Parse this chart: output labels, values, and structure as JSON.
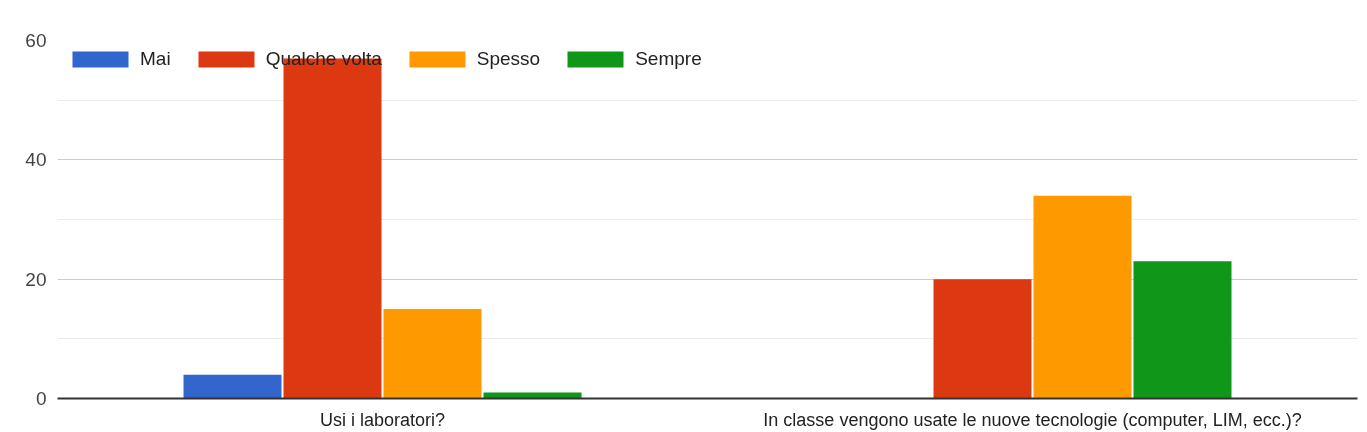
{
  "chart_data": {
    "type": "bar",
    "categories": [
      "Usi i laboratori?",
      "In classe vengono usate le nuove tecnologie (computer, LIM, ecc.)?"
    ],
    "series": [
      {
        "name": "Mai",
        "color": "#3366cc",
        "values": [
          4,
          0
        ]
      },
      {
        "name": "Qualche volta",
        "color": "#dc3912",
        "values": [
          57,
          20
        ]
      },
      {
        "name": "Spesso",
        "color": "#ff9900",
        "values": [
          15,
          34
        ]
      },
      {
        "name": "Sempre",
        "color": "#109618",
        "values": [
          1,
          23
        ]
      }
    ],
    "ylim": [
      0,
      60
    ],
    "yticks": [
      0,
      {
        "value": 10,
        "label": null
      },
      20,
      {
        "value": 30,
        "label": null
      },
      40,
      {
        "value": 50,
        "label": null
      },
      60
    ],
    "grid": "y",
    "legend": "top left"
  }
}
